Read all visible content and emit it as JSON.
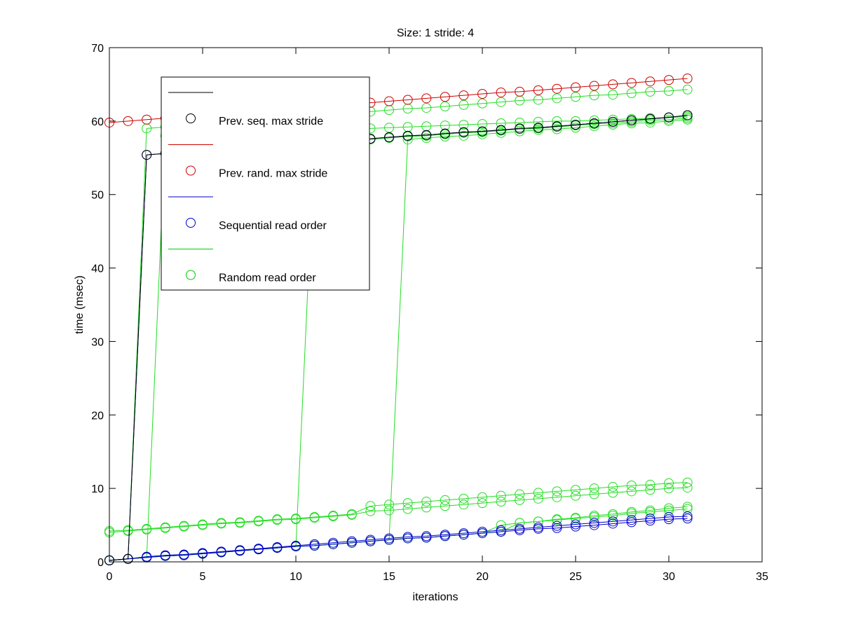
{
  "chart_data": {
    "type": "line",
    "title": "Size: 1 stride: 4",
    "xlabel": "iterations",
    "ylabel": "time (msec)",
    "xlim": [
      0,
      35
    ],
    "ylim": [
      0,
      70
    ],
    "xticks": [
      0,
      5,
      10,
      15,
      20,
      25,
      30,
      35
    ],
    "yticks": [
      0,
      10,
      20,
      30,
      40,
      50,
      60,
      70
    ],
    "grid": false,
    "legend_position": "top-left",
    "legend": [
      {
        "label": "Prev. seq. max stride",
        "color": "#000000"
      },
      {
        "label": "Prev. rand. max stride",
        "color": "#cc0000"
      },
      {
        "label": "Sequential read order",
        "color": "#0000cc"
      },
      {
        "label": "Random read order",
        "color": "#00cc00"
      }
    ],
    "x": [
      0,
      1,
      2,
      3,
      4,
      5,
      6,
      7,
      8,
      9,
      10,
      11,
      12,
      13,
      14,
      15,
      16,
      17,
      18,
      19,
      20,
      21,
      22,
      23,
      24,
      25,
      26,
      27,
      28,
      29,
      30,
      31
    ],
    "series": [
      {
        "name": "Random read order",
        "color": "#22dd22",
        "values": [
          4.2,
          4.3,
          4.5,
          4.7,
          4.9,
          5.1,
          5.3,
          5.4,
          5.6,
          5.8,
          5.9,
          6.1,
          6.3,
          6.5,
          7.6,
          7.8,
          8.0,
          8.2,
          8.4,
          8.6,
          8.8,
          9.0,
          9.2,
          9.4,
          9.6,
          9.8,
          10.0,
          10.2,
          10.4,
          10.5,
          10.7,
          10.8
        ]
      },
      {
        "name": "Random read order",
        "color": "#22dd22",
        "values": [
          4.0,
          4.2,
          4.4,
          4.6,
          4.8,
          5.0,
          5.2,
          5.3,
          5.5,
          5.7,
          5.8,
          6.0,
          6.2,
          6.4,
          6.9,
          7.0,
          7.2,
          7.4,
          7.6,
          7.8,
          8.0,
          8.2,
          8.4,
          8.6,
          8.8,
          9.0,
          9.2,
          9.4,
          9.6,
          9.8,
          10.0,
          10.1
        ]
      },
      {
        "name": "Random read order",
        "color": "#22dd22",
        "values": [
          0.2,
          0.4,
          59.0,
          59.2,
          59.4,
          59.6,
          59.8,
          60.0,
          60.2,
          60.4,
          60.6,
          60.7,
          60.9,
          61.1,
          61.3,
          61.5,
          61.7,
          61.8,
          62.0,
          62.2,
          62.4,
          62.6,
          62.8,
          62.9,
          63.1,
          63.3,
          63.5,
          63.6,
          63.8,
          64.0,
          64.1,
          64.3
        ]
      },
      {
        "name": "Random read order",
        "color": "#22dd22",
        "values": [
          0.2,
          0.4,
          0.6,
          58.0,
          58.1,
          58.2,
          58.3,
          58.4,
          58.5,
          58.6,
          58.7,
          58.7,
          58.8,
          58.9,
          59.0,
          59.1,
          59.2,
          59.3,
          59.4,
          59.5,
          59.6,
          59.7,
          59.8,
          59.9,
          60.0,
          60.0,
          60.1,
          60.2,
          60.3,
          60.4,
          60.5,
          60.6
        ]
      },
      {
        "name": "Random read order",
        "color": "#22dd22",
        "values": [
          0.2,
          0.4,
          0.6,
          0.8,
          0.9,
          1.1,
          1.3,
          1.5,
          1.7,
          1.9,
          2.1,
          57.0,
          57.2,
          57.3,
          57.5,
          57.7,
          57.9,
          58.0,
          58.2,
          58.4,
          58.5,
          58.7,
          58.9,
          59.0,
          59.2,
          59.4,
          59.6,
          59.7,
          59.9,
          60.1,
          60.2,
          60.4
        ]
      },
      {
        "name": "Random read order",
        "color": "#22dd22",
        "values": [
          0.2,
          0.4,
          0.6,
          0.8,
          0.9,
          1.1,
          1.3,
          1.5,
          1.7,
          1.9,
          2.1,
          2.2,
          2.4,
          2.6,
          2.8,
          3.0,
          57.5,
          57.7,
          57.9,
          58.0,
          58.2,
          58.4,
          58.6,
          58.8,
          58.9,
          59.1,
          59.3,
          59.5,
          59.7,
          59.8,
          60.0,
          60.2
        ]
      },
      {
        "name": "Random read order",
        "color": "#22dd22",
        "values": [
          0.2,
          0.4,
          0.6,
          0.8,
          0.9,
          1.1,
          1.3,
          1.5,
          1.7,
          1.9,
          2.1,
          2.2,
          2.4,
          2.6,
          2.8,
          3.0,
          3.2,
          3.3,
          3.5,
          3.7,
          3.9,
          5.0,
          5.3,
          5.5,
          5.8,
          6.0,
          6.3,
          6.5,
          6.8,
          7.0,
          7.3,
          7.5
        ]
      },
      {
        "name": "Random read order",
        "color": "#22dd22",
        "values": [
          0.2,
          0.4,
          0.6,
          0.8,
          0.9,
          1.1,
          1.3,
          1.5,
          1.7,
          1.9,
          2.1,
          2.2,
          2.4,
          2.6,
          2.8,
          3.0,
          3.2,
          3.3,
          3.5,
          3.7,
          3.9,
          4.1,
          5.3,
          5.5,
          5.7,
          5.9,
          6.1,
          6.3,
          6.6,
          6.8,
          7.0,
          7.2
        ]
      },
      {
        "name": "Sequential read order",
        "color": "#0000cc",
        "values": [
          0.2,
          0.4,
          0.6,
          0.8,
          0.9,
          1.1,
          1.3,
          1.5,
          1.7,
          1.9,
          2.1,
          2.2,
          2.4,
          2.6,
          2.8,
          3.0,
          3.2,
          3.3,
          3.5,
          3.7,
          3.9,
          4.1,
          4.3,
          4.5,
          4.6,
          4.8,
          5.0,
          5.2,
          5.4,
          5.6,
          5.8,
          5.9
        ]
      },
      {
        "name": "Sequential read order",
        "color": "#0000cc",
        "values": [
          0.2,
          0.4,
          0.7,
          0.9,
          1.0,
          1.2,
          1.4,
          1.6,
          1.8,
          2.0,
          2.2,
          2.4,
          2.6,
          2.8,
          3.0,
          3.2,
          3.4,
          3.5,
          3.7,
          3.9,
          4.1,
          4.3,
          4.5,
          4.7,
          4.9,
          5.1,
          5.3,
          5.5,
          5.7,
          5.9,
          6.1,
          6.2
        ]
      },
      {
        "name": "Sequential read order",
        "color": "#0000cc",
        "values": [
          0.2,
          0.4,
          55.4,
          55.6,
          55.8,
          56.0,
          56.2,
          56.4,
          56.5,
          56.7,
          56.9,
          57.1,
          57.3,
          57.4,
          57.6,
          57.8,
          58.0,
          58.1,
          58.3,
          58.5,
          58.6,
          58.8,
          59.0,
          59.1,
          59.3,
          59.5,
          59.7,
          59.9,
          60.1,
          60.3,
          60.5,
          60.8
        ]
      },
      {
        "name": "Prev. seq. max stride",
        "color": "#000000",
        "values": [
          0.2,
          0.4,
          55.4,
          55.6,
          55.8,
          56.0,
          56.2,
          56.4,
          56.5,
          56.7,
          56.9,
          57.1,
          57.3,
          57.4,
          57.6,
          57.8,
          58.0,
          58.1,
          58.3,
          58.5,
          58.6,
          58.8,
          59.0,
          59.1,
          59.3,
          59.5,
          59.7,
          59.9,
          60.1,
          60.3,
          60.5,
          60.8
        ]
      },
      {
        "name": "Prev. rand. max stride",
        "color": "#cc0000",
        "values": [
          59.8,
          60.0,
          60.2,
          60.4,
          60.6,
          60.8,
          61.0,
          61.2,
          61.4,
          61.5,
          61.7,
          61.9,
          62.1,
          62.3,
          62.5,
          62.7,
          62.9,
          63.1,
          63.3,
          63.5,
          63.7,
          63.9,
          64.0,
          64.2,
          64.4,
          64.6,
          64.8,
          65.0,
          65.2,
          65.4,
          65.6,
          65.8
        ]
      }
    ]
  }
}
